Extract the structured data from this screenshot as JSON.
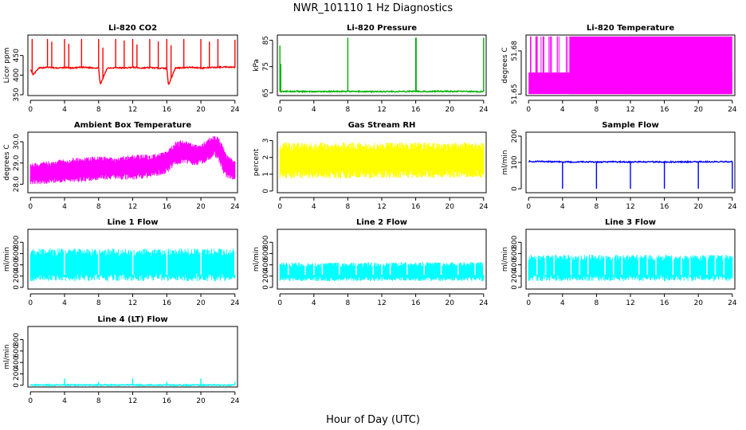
{
  "figure": {
    "title": "NWR_101110  1 Hz Diagnostics",
    "xlabel": "Hour of Day (UTC)"
  },
  "chart_data": [
    {
      "type": "line",
      "title": "Li-820 CO2",
      "ylabel": "Licor ppm",
      "color": "#ff0000",
      "xlim": [
        -0.3,
        24.3
      ],
      "ylim": [
        348,
        502
      ],
      "xticks": [
        "0",
        "4",
        "8",
        "12",
        "16",
        "20",
        "24"
      ],
      "yticks": [
        350,
        400,
        450
      ],
      "series": {
        "x": [
          0,
          0.3,
          1,
          2,
          3,
          4,
          5,
          6,
          7,
          8,
          8.2,
          9,
          10,
          11,
          12,
          13,
          14,
          15,
          16,
          16.2,
          17,
          18,
          19,
          20,
          21,
          22,
          23,
          24
        ],
        "y": [
          415,
          400,
          418,
          420,
          418,
          419,
          418,
          420,
          419,
          418,
          375,
          418,
          419,
          418,
          420,
          418,
          419,
          418,
          417,
          375,
          418,
          419,
          420,
          418,
          419,
          420,
          421,
          420
        ]
      },
      "spikes": {
        "x": [
          0.2,
          2,
          2.5,
          4,
          4.5,
          6,
          8,
          8.5,
          10,
          11,
          12,
          12.5,
          14,
          15,
          16,
          16.5,
          18,
          20,
          21,
          22,
          24
        ],
        "y": [
          492,
          492,
          485,
          492,
          480,
          492,
          492,
          470,
          492,
          488,
          492,
          478,
          492,
          486,
          492,
          476,
          492,
          492,
          485,
          492,
          490
        ]
      }
    },
    {
      "type": "line",
      "title": "Li-820 Pressure",
      "ylabel": "kPa",
      "color": "#00b000",
      "xlim": [
        -0.3,
        24.3
      ],
      "ylim": [
        64,
        87
      ],
      "xticks": [
        "0",
        "4",
        "8",
        "12",
        "16",
        "20",
        "24"
      ],
      "yticks": [
        65,
        75,
        85
      ],
      "series": {
        "x": [
          0,
          4,
          8,
          12,
          16,
          20,
          24
        ],
        "y": [
          65.6,
          65.5,
          65.6,
          65.5,
          65.6,
          65.6,
          65.5
        ]
      },
      "spikes": {
        "x": [
          0,
          0.1,
          8,
          16,
          16.05,
          24
        ],
        "y": [
          83,
          76,
          86,
          86,
          86,
          86
        ]
      }
    },
    {
      "type": "line",
      "title": "Li-820 Temperature",
      "ylabel": "degrees C",
      "color": "#ff00ff",
      "xlim": [
        -0.3,
        24.3
      ],
      "ylim": [
        51.649,
        51.691
      ],
      "xticks": [
        "0",
        "4",
        "8",
        "12",
        "16",
        "20",
        "24"
      ],
      "yticks": [
        51.65,
        51.68
      ],
      "band": {
        "from": 0,
        "to": 24,
        "low": 51.65,
        "high": 51.665,
        "full_from": 4.8,
        "full_high": 51.69
      }
    },
    {
      "type": "line",
      "title": "Ambient Box Temperature",
      "ylabel": "degrees C",
      "color": "#ff00ff",
      "xlim": [
        -0.3,
        24.3
      ],
      "ylim": [
        27.6,
        30.45
      ],
      "xticks": [
        "0",
        "4",
        "8",
        "12",
        "16",
        "20",
        "24"
      ],
      "yticks": [
        28.0,
        29.0,
        30.0
      ],
      "band": {
        "x": [
          0,
          2,
          4,
          6,
          8,
          10,
          12,
          14,
          16,
          17,
          18,
          19,
          20,
          21,
          21.5,
          22,
          22.5,
          23,
          24
        ],
        "low": [
          28.0,
          28.0,
          28.1,
          28.1,
          28.2,
          28.2,
          28.2,
          28.3,
          28.5,
          28.9,
          29.0,
          28.9,
          28.9,
          29.1,
          29.3,
          29.2,
          28.6,
          28.3,
          28.2
        ],
        "high": [
          29.0,
          29.1,
          29.2,
          29.3,
          29.3,
          29.3,
          29.4,
          29.4,
          29.6,
          30.0,
          30.1,
          29.9,
          29.9,
          30.2,
          30.3,
          30.3,
          29.9,
          29.4,
          29.1
        ]
      }
    },
    {
      "type": "line",
      "title": "Gas Stream RH",
      "ylabel": "percent",
      "color": "#ffff00",
      "xlim": [
        -0.3,
        24.3
      ],
      "ylim": [
        -0.1,
        3.5
      ],
      "xticks": [
        "0",
        "4",
        "8",
        "12",
        "16",
        "20",
        "24"
      ],
      "yticks": [
        0,
        1,
        2,
        3
      ],
      "band": {
        "x": [
          0,
          24
        ],
        "low": [
          0.7,
          0.8
        ],
        "high": [
          2.9,
          2.9
        ]
      }
    },
    {
      "type": "line",
      "title": "Sample Flow",
      "ylabel": "ml/min",
      "color": "#0000ff",
      "xlim": [
        -0.3,
        24.3
      ],
      "ylim": [
        -15,
        215
      ],
      "xticks": [
        "0",
        "4",
        "8",
        "12",
        "16",
        "20",
        "24"
      ],
      "yticks": [
        0,
        100,
        200
      ],
      "series": {
        "x": [
          0,
          4,
          8,
          12,
          16,
          20,
          24
        ],
        "y": [
          104,
          102,
          102,
          102,
          102,
          102,
          103
        ]
      },
      "dips": {
        "x": [
          4,
          8,
          12,
          16,
          20,
          24
        ],
        "y": [
          0,
          0,
          0,
          0,
          0,
          0
        ]
      }
    },
    {
      "type": "line",
      "title": "Line 1 Flow",
      "ylabel": "ml/min",
      "color": "#00ffff",
      "xlim": [
        -0.3,
        24.3
      ],
      "ylim": [
        -30,
        1030
      ],
      "xticks": [
        "0",
        "4",
        "8",
        "12",
        "16",
        "20",
        "24"
      ],
      "yticks": [
        0,
        200,
        400,
        600,
        800
      ],
      "band": {
        "x": [
          0,
          24
        ],
        "low": [
          110,
          110
        ],
        "high": [
          690,
          690
        ]
      },
      "gaps": [
        4,
        8,
        12,
        16,
        20,
        24
      ]
    },
    {
      "type": "line",
      "title": "Line 2 Flow",
      "ylabel": "ml/min",
      "color": "#00ffff",
      "xlim": [
        -0.3,
        24.3
      ],
      "ylim": [
        -30,
        1030
      ],
      "xticks": [
        "0",
        "4",
        "8",
        "12",
        "16",
        "20",
        "24"
      ],
      "yticks": [
        0,
        200,
        400,
        600,
        800
      ],
      "band": {
        "x": [
          0,
          24
        ],
        "low": [
          110,
          110
        ],
        "high": [
          440,
          450
        ]
      },
      "gaps": [
        1,
        3,
        4,
        5,
        7,
        9,
        11,
        12,
        13,
        15,
        17,
        19,
        21,
        23,
        24
      ]
    },
    {
      "type": "line",
      "title": "Line 3 Flow",
      "ylabel": "ml/min",
      "color": "#00ffff",
      "xlim": [
        -0.3,
        24.3
      ],
      "ylim": [
        -30,
        1030
      ],
      "xticks": [
        "0",
        "4",
        "8",
        "12",
        "16",
        "20",
        "24"
      ],
      "yticks": [
        0,
        200,
        400,
        600,
        800
      ],
      "band": {
        "x": [
          0,
          24
        ],
        "low": [
          110,
          110
        ],
        "high": [
          580,
          580
        ]
      },
      "gaps": [
        1,
        2,
        3,
        5,
        6,
        7,
        9,
        10,
        11,
        13,
        14,
        15,
        17,
        18,
        19,
        21,
        22,
        23
      ]
    },
    {
      "type": "line",
      "title": "Line 4 (LT) Flow",
      "ylabel": "ml/min",
      "color": "#00ffff",
      "xlim": [
        -0.3,
        24.3
      ],
      "ylim": [
        -30,
        1030
      ],
      "xticks": [
        "0",
        "4",
        "8",
        "12",
        "16",
        "20",
        "24"
      ],
      "yticks": [
        0,
        200,
        400,
        600,
        800
      ],
      "series": {
        "x": [
          0,
          24
        ],
        "y": [
          5,
          5
        ]
      },
      "spikes": {
        "x": [
          4,
          8,
          12,
          16,
          20,
          24
        ],
        "y": [
          120,
          60,
          120,
          60,
          120,
          60
        ]
      }
    }
  ]
}
